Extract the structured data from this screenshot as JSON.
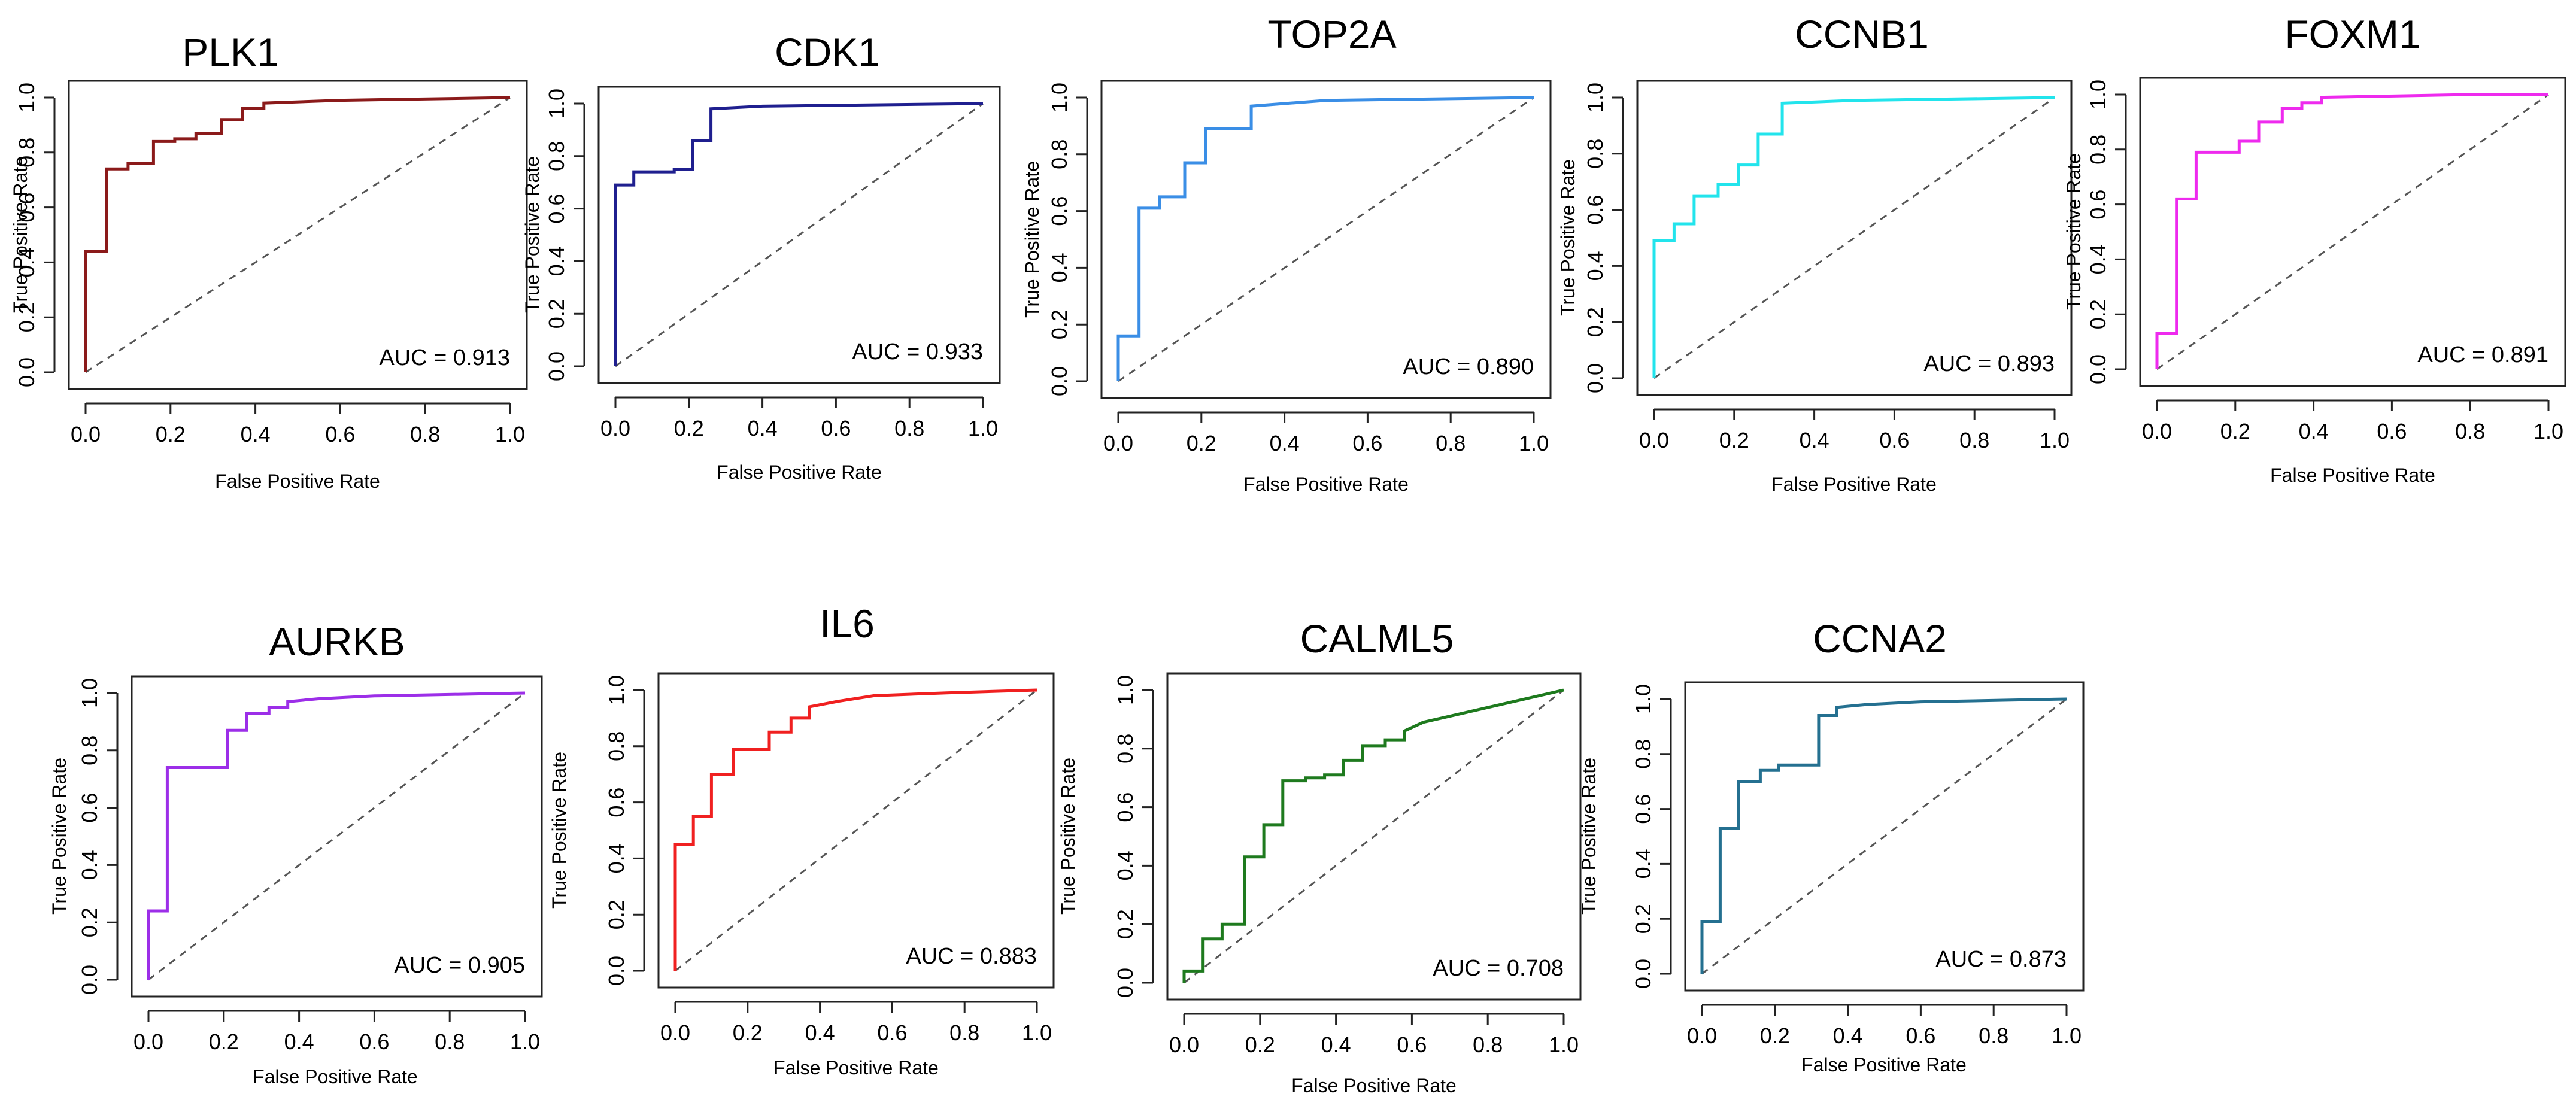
{
  "chart_data": [
    {
      "type": "line",
      "title": "PLK1",
      "xlabel": "False Positive Rate",
      "ylabel": "True Positive Rate",
      "auc_text": "AUC = 0.913",
      "color": "#8B1A1A",
      "xlim": [
        0,
        1
      ],
      "ylim": [
        0,
        1
      ],
      "ticks_x": [
        "0.0",
        "0.2",
        "0.4",
        "0.6",
        "0.8",
        "1.0"
      ],
      "ticks_y": [
        "0.0",
        "0.2",
        "0.4",
        "0.6",
        "0.8",
        "1.0"
      ],
      "x": [
        0,
        0,
        0.02,
        0.02,
        0.05,
        0.05,
        0.1,
        0.1,
        0.16,
        0.16,
        0.21,
        0.21,
        0.26,
        0.26,
        0.32,
        0.32,
        0.37,
        0.37,
        0.42,
        0.42,
        0.6,
        1.0
      ],
      "y": [
        0,
        0.44,
        0.44,
        0.44,
        0.44,
        0.74,
        0.74,
        0.76,
        0.76,
        0.84,
        0.84,
        0.85,
        0.85,
        0.87,
        0.87,
        0.92,
        0.92,
        0.96,
        0.96,
        0.98,
        0.99,
        1.0
      ]
    },
    {
      "type": "line",
      "title": "CDK1",
      "xlabel": "False Positive Rate",
      "ylabel": "True Positive Rate",
      "auc_text": "AUC = 0.933",
      "color": "#1F1F8F",
      "xlim": [
        0,
        1
      ],
      "ylim": [
        0,
        1
      ],
      "ticks_x": [
        "0.0",
        "0.2",
        "0.4",
        "0.6",
        "0.8",
        "1.0"
      ],
      "ticks_y": [
        "0.0",
        "0.2",
        "0.4",
        "0.6",
        "0.8",
        "1.0"
      ],
      "x": [
        0,
        0,
        0.05,
        0.05,
        0.16,
        0.16,
        0.21,
        0.21,
        0.26,
        0.26,
        0.4,
        1.0
      ],
      "y": [
        0,
        0.69,
        0.69,
        0.74,
        0.74,
        0.75,
        0.75,
        0.86,
        0.86,
        0.98,
        0.99,
        1.0
      ]
    },
    {
      "type": "line",
      "title": "TOP2A",
      "xlabel": "False Positive Rate",
      "ylabel": "True Positive Rate",
      "auc_text": "AUC = 0.890",
      "color": "#3A8EE6",
      "xlim": [
        0,
        1
      ],
      "ylim": [
        0,
        1
      ],
      "ticks_x": [
        "0.0",
        "0.2",
        "0.4",
        "0.6",
        "0.8",
        "1.0"
      ],
      "ticks_y": [
        "0.0",
        "0.2",
        "0.4",
        "0.6",
        "0.8",
        "1.0"
      ],
      "x": [
        0,
        0,
        0.05,
        0.05,
        0.1,
        0.1,
        0.16,
        0.16,
        0.21,
        0.21,
        0.32,
        0.32,
        0.5,
        1.0
      ],
      "y": [
        0,
        0.16,
        0.16,
        0.61,
        0.61,
        0.65,
        0.65,
        0.77,
        0.77,
        0.89,
        0.89,
        0.97,
        0.99,
        1.0
      ]
    },
    {
      "type": "line",
      "title": "CCNB1",
      "xlabel": "False Positive Rate",
      "ylabel": "True Positive Rate",
      "auc_text": "AUC = 0.893",
      "color": "#22E4EC",
      "xlim": [
        0,
        1
      ],
      "ylim": [
        0,
        1
      ],
      "ticks_x": [
        "0.0",
        "0.2",
        "0.4",
        "0.6",
        "0.8",
        "1.0"
      ],
      "ticks_y": [
        "0.0",
        "0.2",
        "0.4",
        "0.6",
        "0.8",
        "1.0"
      ],
      "x": [
        0,
        0,
        0.05,
        0.05,
        0.1,
        0.1,
        0.16,
        0.16,
        0.21,
        0.21,
        0.26,
        0.26,
        0.32,
        0.32,
        0.5,
        1.0
      ],
      "y": [
        0,
        0.49,
        0.49,
        0.55,
        0.55,
        0.65,
        0.65,
        0.69,
        0.69,
        0.76,
        0.76,
        0.87,
        0.87,
        0.98,
        0.99,
        1.0
      ]
    },
    {
      "type": "line",
      "title": "FOXM1",
      "xlabel": "False Positive Rate",
      "ylabel": "True Positive Rate",
      "auc_text": "AUC = 0.891",
      "color": "#EE2AEE",
      "xlim": [
        0,
        1
      ],
      "ylim": [
        0,
        1
      ],
      "ticks_x": [
        "0.0",
        "0.2",
        "0.4",
        "0.6",
        "0.8",
        "1.0"
      ],
      "ticks_y": [
        "0.0",
        "0.2",
        "0.4",
        "0.6",
        "0.8",
        "1.0"
      ],
      "x": [
        0,
        0,
        0.05,
        0.05,
        0.1,
        0.1,
        0.21,
        0.21,
        0.26,
        0.26,
        0.32,
        0.32,
        0.37,
        0.37,
        0.42,
        0.42,
        0.8,
        1.0
      ],
      "y": [
        0,
        0.13,
        0.13,
        0.62,
        0.62,
        0.79,
        0.79,
        0.83,
        0.83,
        0.9,
        0.9,
        0.95,
        0.95,
        0.97,
        0.97,
        0.99,
        1.0,
        1.0
      ]
    },
    {
      "type": "line",
      "title": "AURKB",
      "xlabel": "False Positive Rate",
      "ylabel": "True Positive Rate",
      "auc_text": "AUC = 0.905",
      "color": "#9C2EE8",
      "xlim": [
        0,
        1
      ],
      "ylim": [
        0,
        1
      ],
      "ticks_x": [
        "0.0",
        "0.2",
        "0.4",
        "0.6",
        "0.8",
        "1.0"
      ],
      "ticks_y": [
        "0.0",
        "0.2",
        "0.4",
        "0.6",
        "0.8",
        "1.0"
      ],
      "x": [
        0,
        0,
        0.05,
        0.05,
        0.21,
        0.21,
        0.26,
        0.26,
        0.32,
        0.32,
        0.37,
        0.37,
        0.45,
        0.6,
        1.0
      ],
      "y": [
        0,
        0.24,
        0.24,
        0.74,
        0.74,
        0.87,
        0.87,
        0.93,
        0.93,
        0.95,
        0.95,
        0.97,
        0.98,
        0.99,
        1.0
      ]
    },
    {
      "type": "line",
      "title": "IL6",
      "xlabel": "False Positive Rate",
      "ylabel": "True Positive Rate",
      "auc_text": "AUC = 0.883",
      "color": "#F02020",
      "xlim": [
        0,
        1
      ],
      "ylim": [
        0,
        1
      ],
      "ticks_x": [
        "0.0",
        "0.2",
        "0.4",
        "0.6",
        "0.8",
        "1.0"
      ],
      "ticks_y": [
        "0.0",
        "0.2",
        "0.4",
        "0.6",
        "0.8",
        "1.0"
      ],
      "x": [
        0,
        0,
        0.05,
        0.05,
        0.1,
        0.1,
        0.16,
        0.16,
        0.26,
        0.26,
        0.32,
        0.32,
        0.37,
        0.37,
        0.45,
        0.55,
        0.75,
        1.0
      ],
      "y": [
        0,
        0.45,
        0.45,
        0.55,
        0.55,
        0.7,
        0.7,
        0.79,
        0.79,
        0.85,
        0.85,
        0.9,
        0.9,
        0.94,
        0.96,
        0.98,
        0.99,
        1.0
      ]
    },
    {
      "type": "line",
      "title": "CALML5",
      "xlabel": "False Positive Rate",
      "ylabel": "True Positive Rate",
      "auc_text": "AUC = 0.708",
      "color": "#1E7A1E",
      "xlim": [
        0,
        1
      ],
      "ylim": [
        0,
        1
      ],
      "ticks_x": [
        "0.0",
        "0.2",
        "0.4",
        "0.6",
        "0.8",
        "1.0"
      ],
      "ticks_y": [
        "0.0",
        "0.2",
        "0.4",
        "0.6",
        "0.8",
        "1.0"
      ],
      "x": [
        0,
        0,
        0.05,
        0.05,
        0.1,
        0.1,
        0.16,
        0.16,
        0.21,
        0.21,
        0.26,
        0.26,
        0.32,
        0.32,
        0.37,
        0.37,
        0.42,
        0.42,
        0.47,
        0.47,
        0.53,
        0.53,
        0.58,
        0.58,
        0.63,
        1.0
      ],
      "y": [
        0,
        0.04,
        0.04,
        0.15,
        0.15,
        0.2,
        0.2,
        0.43,
        0.43,
        0.54,
        0.54,
        0.69,
        0.69,
        0.7,
        0.7,
        0.71,
        0.71,
        0.76,
        0.76,
        0.81,
        0.81,
        0.83,
        0.83,
        0.86,
        0.89,
        1.0
      ]
    },
    {
      "type": "line",
      "title": "CCNA2",
      "xlabel": "False Positive Rate",
      "ylabel": "True Positive Rate",
      "auc_text": "AUC = 0.873",
      "color": "#247090",
      "xlim": [
        0,
        1
      ],
      "ylim": [
        0,
        1
      ],
      "ticks_x": [
        "0.0",
        "0.2",
        "0.4",
        "0.6",
        "0.8",
        "1.0"
      ],
      "ticks_y": [
        "0.0",
        "0.2",
        "0.4",
        "0.6",
        "0.8",
        "1.0"
      ],
      "x": [
        0,
        0,
        0.05,
        0.05,
        0.1,
        0.1,
        0.16,
        0.16,
        0.21,
        0.21,
        0.32,
        0.32,
        0.37,
        0.37,
        0.45,
        0.6,
        1.0
      ],
      "y": [
        0,
        0.19,
        0.19,
        0.53,
        0.53,
        0.7,
        0.7,
        0.74,
        0.74,
        0.76,
        0.76,
        0.94,
        0.94,
        0.97,
        0.98,
        0.99,
        1.0
      ]
    }
  ]
}
